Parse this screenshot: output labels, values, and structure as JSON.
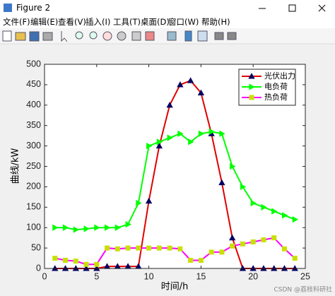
{
  "window": {
    "title": "Figure 2"
  },
  "menu": {
    "items": [
      "文件(F)",
      "编辑(E)",
      "查看(V)",
      "插入(I)",
      "工具(T)",
      "桌面(D)",
      "窗口(W)",
      "帮助(H)"
    ]
  },
  "chart_data": {
    "type": "line",
    "xlabel": "时间/h",
    "ylabel": "曲线/kW",
    "x": [
      1,
      2,
      3,
      4,
      5,
      6,
      7,
      8,
      9,
      10,
      11,
      12,
      13,
      14,
      15,
      16,
      17,
      18,
      19,
      20,
      21,
      22,
      23,
      24
    ],
    "series": [
      {
        "name": "光伏出力",
        "color": "#e00000",
        "marker": "^",
        "marker_color": "#000060",
        "values": [
          0,
          0,
          0,
          0,
          0,
          5,
          5,
          5,
          5,
          165,
          300,
          400,
          450,
          460,
          430,
          330,
          210,
          75,
          0,
          0,
          0,
          0,
          0,
          0
        ]
      },
      {
        "name": "电负荷",
        "color": "#00ff00",
        "marker": ">",
        "marker_color": "#00ff00",
        "values": [
          100,
          100,
          95,
          97,
          100,
          100,
          100,
          108,
          160,
          300,
          310,
          320,
          330,
          310,
          330,
          335,
          330,
          250,
          200,
          160,
          150,
          140,
          130,
          120
        ]
      },
      {
        "name": "热负荷",
        "color": "#ff00ff",
        "marker": "s",
        "marker_color": "#c8e000",
        "values": [
          25,
          20,
          18,
          10,
          10,
          50,
          48,
          50,
          50,
          50,
          50,
          50,
          48,
          20,
          20,
          40,
          40,
          55,
          60,
          65,
          70,
          75,
          48,
          25
        ]
      }
    ],
    "xlim": [
      0,
      25
    ],
    "xticks": [
      0,
      5,
      10,
      15,
      20,
      25
    ],
    "ylim": [
      0,
      500
    ],
    "yticks": [
      0,
      50,
      100,
      150,
      200,
      250,
      300,
      350,
      400,
      450,
      500
    ],
    "legend": "upper right",
    "grid": false
  },
  "watermark": "CSDN @荔枝科研社"
}
